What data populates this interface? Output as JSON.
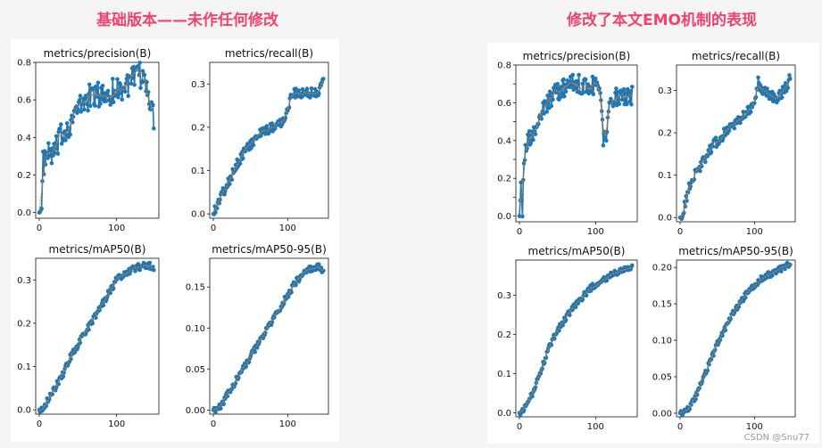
{
  "headings": {
    "left": "基础版本——未作任何修改",
    "right": "修改了本文EMO机制的表现"
  },
  "watermark": "CSDN @Snu77",
  "colors": {
    "heading": "#f0426e",
    "series_marker": "#1f77b4",
    "smooth_line": "#ff7f0e",
    "background": "#ffffff"
  },
  "chart_data": [
    {
      "type": "line",
      "panel": "left",
      "title": "metrics/precision(B)",
      "xlim": [
        0,
        150
      ],
      "ylim": [
        -0.03,
        0.8
      ],
      "xticks": [
        0,
        100
      ],
      "yticks": [
        0.0,
        0.2,
        0.4,
        0.6,
        0.8
      ],
      "ytick_labels": [
        "0.0",
        "0.2",
        "0.4",
        "0.6",
        "0.8"
      ],
      "keypoints": [
        [
          0,
          0.0
        ],
        [
          3,
          0.0
        ],
        [
          5,
          0.26
        ],
        [
          10,
          0.3
        ],
        [
          20,
          0.32
        ],
        [
          30,
          0.42
        ],
        [
          40,
          0.48
        ],
        [
          50,
          0.55
        ],
        [
          60,
          0.6
        ],
        [
          70,
          0.63
        ],
        [
          80,
          0.62
        ],
        [
          90,
          0.64
        ],
        [
          100,
          0.65
        ],
        [
          110,
          0.67
        ],
        [
          120,
          0.7
        ],
        [
          130,
          0.73
        ],
        [
          140,
          0.68
        ],
        [
          145,
          0.55
        ],
        [
          148,
          0.5
        ]
      ],
      "noise": 0.07
    },
    {
      "type": "line",
      "panel": "left",
      "title": "metrics/recall(B)",
      "xlim": [
        0,
        150
      ],
      "ylim": [
        -0.01,
        0.35
      ],
      "xticks": [
        0,
        100
      ],
      "yticks": [
        0.0,
        0.1,
        0.2,
        0.3
      ],
      "ytick_labels": [
        "0.0",
        "0.1",
        "0.2",
        "0.3"
      ],
      "keypoints": [
        [
          0,
          0.0
        ],
        [
          5,
          0.02
        ],
        [
          10,
          0.04
        ],
        [
          20,
          0.07
        ],
        [
          30,
          0.11
        ],
        [
          40,
          0.14
        ],
        [
          50,
          0.16
        ],
        [
          60,
          0.18
        ],
        [
          70,
          0.19
        ],
        [
          80,
          0.2
        ],
        [
          90,
          0.21
        ],
        [
          100,
          0.24
        ],
        [
          105,
          0.28
        ],
        [
          110,
          0.28
        ],
        [
          120,
          0.28
        ],
        [
          130,
          0.28
        ],
        [
          140,
          0.28
        ],
        [
          148,
          0.31
        ]
      ],
      "noise": 0.012
    },
    {
      "type": "line",
      "panel": "left",
      "title": "metrics/mAP50(B)",
      "xlim": [
        0,
        150
      ],
      "ylim": [
        -0.01,
        0.35
      ],
      "xticks": [
        0,
        100
      ],
      "yticks": [
        0.0,
        0.1,
        0.2,
        0.3
      ],
      "ytick_labels": [
        "0.0",
        "0.1",
        "0.2",
        "0.3"
      ],
      "keypoints": [
        [
          0,
          0.0
        ],
        [
          5,
          0.005
        ],
        [
          10,
          0.02
        ],
        [
          20,
          0.05
        ],
        [
          30,
          0.08
        ],
        [
          40,
          0.12
        ],
        [
          50,
          0.15
        ],
        [
          60,
          0.18
        ],
        [
          70,
          0.21
        ],
        [
          80,
          0.24
        ],
        [
          90,
          0.27
        ],
        [
          100,
          0.3
        ],
        [
          110,
          0.315
        ],
        [
          120,
          0.325
        ],
        [
          130,
          0.33
        ],
        [
          140,
          0.335
        ],
        [
          148,
          0.33
        ]
      ],
      "noise": 0.008
    },
    {
      "type": "line",
      "panel": "left",
      "title": "metrics/mAP50-95(B)",
      "xlim": [
        0,
        150
      ],
      "ylim": [
        -0.005,
        0.185
      ],
      "xticks": [
        0,
        100
      ],
      "yticks": [
        0.0,
        0.05,
        0.1,
        0.15
      ],
      "ytick_labels": [
        "0.00",
        "0.05",
        "0.10",
        "0.15"
      ],
      "keypoints": [
        [
          0,
          0.0
        ],
        [
          5,
          0.0
        ],
        [
          10,
          0.005
        ],
        [
          20,
          0.02
        ],
        [
          30,
          0.035
        ],
        [
          40,
          0.05
        ],
        [
          50,
          0.065
        ],
        [
          60,
          0.08
        ],
        [
          70,
          0.095
        ],
        [
          80,
          0.11
        ],
        [
          90,
          0.125
        ],
        [
          100,
          0.14
        ],
        [
          110,
          0.155
        ],
        [
          120,
          0.165
        ],
        [
          130,
          0.172
        ],
        [
          140,
          0.175
        ],
        [
          148,
          0.17
        ]
      ],
      "noise": 0.004
    },
    {
      "type": "line",
      "panel": "right",
      "title": "metrics/precision(B)",
      "xlim": [
        0,
        150
      ],
      "ylim": [
        -0.03,
        0.8
      ],
      "xticks": [
        0,
        100
      ],
      "yticks": [
        0.0,
        0.1,
        0.2,
        0.3,
        0.4,
        0.5,
        0.6,
        0.7,
        0.8
      ],
      "ytick_labels": [
        "0.0",
        "",
        "0.2",
        "",
        "0.4",
        "",
        "0.6",
        "",
        "0.8"
      ],
      "keypoints": [
        [
          0,
          0.0
        ],
        [
          2,
          0.15
        ],
        [
          4,
          0.0
        ],
        [
          6,
          0.3
        ],
        [
          10,
          0.38
        ],
        [
          20,
          0.45
        ],
        [
          30,
          0.55
        ],
        [
          40,
          0.62
        ],
        [
          50,
          0.66
        ],
        [
          60,
          0.68
        ],
        [
          70,
          0.7
        ],
        [
          80,
          0.7
        ],
        [
          90,
          0.68
        ],
        [
          100,
          0.7
        ],
        [
          105,
          0.68
        ],
        [
          110,
          0.42
        ],
        [
          115,
          0.42
        ],
        [
          118,
          0.65
        ],
        [
          125,
          0.62
        ],
        [
          135,
          0.65
        ],
        [
          145,
          0.62
        ],
        [
          148,
          0.64
        ]
      ],
      "noise": 0.05
    },
    {
      "type": "line",
      "panel": "right",
      "title": "metrics/recall(B)",
      "xlim": [
        0,
        150
      ],
      "ylim": [
        -0.01,
        0.36
      ],
      "xticks": [
        0,
        100
      ],
      "yticks": [
        0.0,
        0.1,
        0.2,
        0.3
      ],
      "ytick_labels": [
        "0.0",
        "0.1",
        "0.2",
        "0.3"
      ],
      "keypoints": [
        [
          0,
          0.0
        ],
        [
          5,
          0.02
        ],
        [
          10,
          0.06
        ],
        [
          20,
          0.1
        ],
        [
          30,
          0.13
        ],
        [
          40,
          0.16
        ],
        [
          50,
          0.18
        ],
        [
          60,
          0.2
        ],
        [
          70,
          0.22
        ],
        [
          80,
          0.23
        ],
        [
          90,
          0.25
        ],
        [
          100,
          0.26
        ],
        [
          105,
          0.32
        ],
        [
          110,
          0.3
        ],
        [
          120,
          0.29
        ],
        [
          130,
          0.28
        ],
        [
          140,
          0.3
        ],
        [
          148,
          0.33
        ]
      ],
      "noise": 0.013
    },
    {
      "type": "line",
      "panel": "right",
      "title": "metrics/mAP50(B)",
      "xlim": [
        0,
        150
      ],
      "ylim": [
        -0.01,
        0.39
      ],
      "xticks": [
        0,
        100
      ],
      "yticks": [
        0.0,
        0.1,
        0.2,
        0.3
      ],
      "ytick_labels": [
        "0.0",
        "0.1",
        "0.2",
        "0.3"
      ],
      "keypoints": [
        [
          0,
          0.0
        ],
        [
          5,
          0.005
        ],
        [
          10,
          0.02
        ],
        [
          20,
          0.06
        ],
        [
          30,
          0.12
        ],
        [
          40,
          0.17
        ],
        [
          50,
          0.21
        ],
        [
          60,
          0.24
        ],
        [
          70,
          0.27
        ],
        [
          80,
          0.29
        ],
        [
          90,
          0.31
        ],
        [
          100,
          0.33
        ],
        [
          110,
          0.34
        ],
        [
          120,
          0.35
        ],
        [
          130,
          0.36
        ],
        [
          140,
          0.365
        ],
        [
          148,
          0.37
        ]
      ],
      "noise": 0.009
    },
    {
      "type": "line",
      "panel": "right",
      "title": "metrics/mAP50-95(B)",
      "xlim": [
        0,
        150
      ],
      "ylim": [
        -0.005,
        0.21
      ],
      "xticks": [
        0,
        100
      ],
      "yticks": [
        0.0,
        0.05,
        0.1,
        0.15,
        0.2
      ],
      "ytick_labels": [
        "0.00",
        "0.05",
        "0.10",
        "0.15",
        "0.20"
      ],
      "keypoints": [
        [
          0,
          0.0
        ],
        [
          5,
          0.0
        ],
        [
          10,
          0.005
        ],
        [
          20,
          0.02
        ],
        [
          30,
          0.045
        ],
        [
          40,
          0.07
        ],
        [
          50,
          0.095
        ],
        [
          60,
          0.115
        ],
        [
          70,
          0.135
        ],
        [
          80,
          0.15
        ],
        [
          90,
          0.165
        ],
        [
          100,
          0.175
        ],
        [
          110,
          0.185
        ],
        [
          120,
          0.19
        ],
        [
          130,
          0.195
        ],
        [
          140,
          0.2
        ],
        [
          148,
          0.205
        ]
      ],
      "noise": 0.004
    }
  ]
}
